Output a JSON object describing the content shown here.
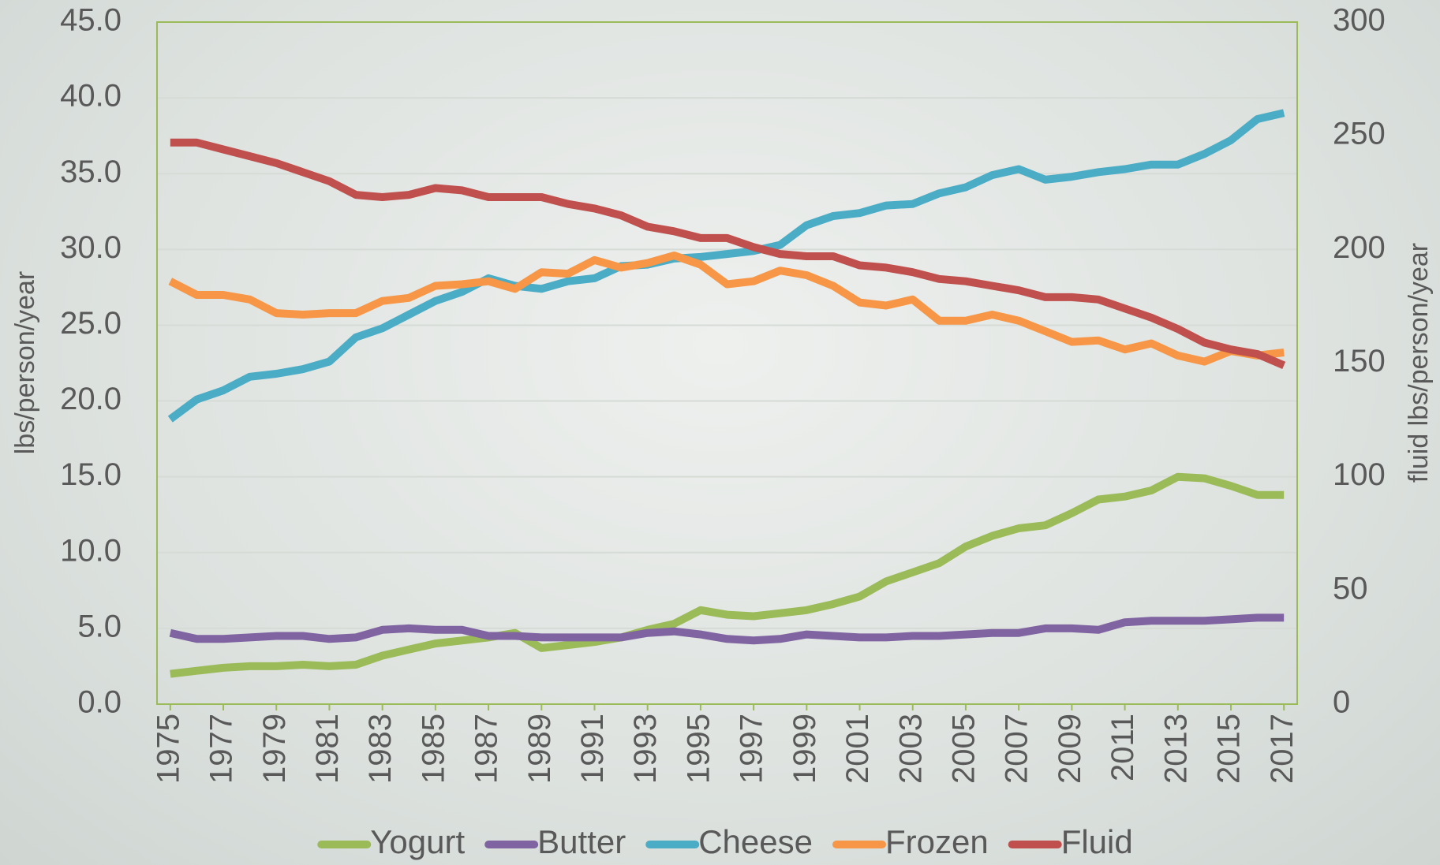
{
  "chart_data": {
    "type": "line",
    "y_label": "lbs/person/year",
    "y2_label": "fluid lbs/person/year",
    "x": [
      1975,
      1976,
      1977,
      1978,
      1979,
      1980,
      1981,
      1982,
      1983,
      1984,
      1985,
      1986,
      1987,
      1988,
      1989,
      1990,
      1991,
      1992,
      1993,
      1994,
      1995,
      1996,
      1997,
      1998,
      1999,
      2000,
      2001,
      2002,
      2003,
      2004,
      2005,
      2006,
      2007,
      2008,
      2009,
      2010,
      2011,
      2012,
      2013,
      2014,
      2015,
      2016,
      2017
    ],
    "xlim": [
      1974.5,
      2017.5
    ],
    "xticks": [
      1975,
      1977,
      1979,
      1981,
      1983,
      1985,
      1987,
      1989,
      1991,
      1993,
      1995,
      1997,
      1999,
      2001,
      2003,
      2005,
      2007,
      2009,
      2011,
      2013,
      2015,
      2017
    ],
    "ylim": [
      0,
      45
    ],
    "yticks": [
      {
        "value": 0,
        "label": "0.0"
      },
      {
        "value": 5,
        "label": "5.0"
      },
      {
        "value": 10,
        "label": "10.0"
      },
      {
        "value": 15,
        "label": "15.0"
      },
      {
        "value": 20,
        "label": "20.0"
      },
      {
        "value": 25,
        "label": "25.0"
      },
      {
        "value": 30,
        "label": "30.0"
      },
      {
        "value": 35,
        "label": "35.0"
      },
      {
        "value": 40,
        "label": "40.0"
      },
      {
        "value": 45,
        "label": "45.0"
      }
    ],
    "y2lim": [
      0,
      300
    ],
    "y2ticks": [
      0,
      50,
      100,
      150,
      200,
      250,
      300
    ],
    "grid": true,
    "legend": "bottom",
    "series": [
      {
        "name": "Yogurt",
        "color": "#9bbb59",
        "values": [
          2.0,
          2.2,
          2.4,
          2.5,
          2.5,
          2.6,
          2.5,
          2.6,
          3.2,
          3.6,
          4.0,
          4.2,
          4.4,
          4.7,
          3.7,
          3.9,
          4.1,
          4.4,
          4.9,
          5.3,
          6.2,
          5.9,
          5.8,
          6.0,
          6.2,
          6.6,
          7.1,
          8.1,
          8.7,
          9.3,
          10.4,
          11.1,
          11.6,
          11.8,
          12.6,
          13.5,
          13.7,
          14.1,
          15.0,
          14.9,
          14.4,
          13.8,
          13.8
        ]
      },
      {
        "name": "Butter",
        "color": "#8064a2",
        "values": [
          4.7,
          4.3,
          4.3,
          4.4,
          4.5,
          4.5,
          4.3,
          4.4,
          4.9,
          5.0,
          4.9,
          4.9,
          4.5,
          4.5,
          4.4,
          4.4,
          4.4,
          4.4,
          4.7,
          4.8,
          4.6,
          4.3,
          4.2,
          4.3,
          4.6,
          4.5,
          4.4,
          4.4,
          4.5,
          4.5,
          4.6,
          4.7,
          4.7,
          5.0,
          5.0,
          4.9,
          5.4,
          5.5,
          5.5,
          5.5,
          5.6,
          5.7,
          5.7
        ]
      },
      {
        "name": "Cheese",
        "color": "#4bacc6",
        "values": [
          18.8,
          20.1,
          20.7,
          21.6,
          21.8,
          22.1,
          22.6,
          24.2,
          24.8,
          25.7,
          26.6,
          27.2,
          28.1,
          27.6,
          27.4,
          27.9,
          28.1,
          28.9,
          29.0,
          29.4,
          29.5,
          29.7,
          29.9,
          30.3,
          31.6,
          32.2,
          32.4,
          32.9,
          33.0,
          33.7,
          34.1,
          34.9,
          35.3,
          34.6,
          34.8,
          35.1,
          35.3,
          35.6,
          35.6,
          36.3,
          37.2,
          38.6,
          39.0
        ]
      },
      {
        "name": "Frozen",
        "color": "#f79646",
        "values": [
          27.9,
          27.0,
          27.0,
          26.7,
          25.8,
          25.7,
          25.8,
          25.8,
          26.6,
          26.8,
          27.6,
          27.7,
          27.9,
          27.4,
          28.5,
          28.4,
          29.3,
          28.8,
          29.1,
          29.6,
          29.0,
          27.7,
          27.9,
          28.6,
          28.3,
          27.6,
          26.5,
          26.3,
          26.7,
          25.3,
          25.3,
          25.7,
          25.3,
          24.6,
          23.9,
          24.0,
          23.4,
          23.8,
          23.0,
          22.6,
          23.3,
          23.0,
          23.2
        ]
      },
      {
        "name": "Fluid",
        "color": "#c0504d",
        "axis": "y2",
        "values": [
          247,
          247,
          244,
          241,
          238,
          234,
          230,
          224,
          223,
          224,
          227,
          226,
          223,
          223,
          223,
          220,
          218,
          215,
          210,
          208,
          205,
          205,
          201,
          198,
          197,
          197,
          193,
          192,
          190,
          187,
          186,
          184,
          182,
          179,
          179,
          178,
          174,
          170,
          165,
          159,
          156,
          154,
          149
        ]
      }
    ]
  }
}
